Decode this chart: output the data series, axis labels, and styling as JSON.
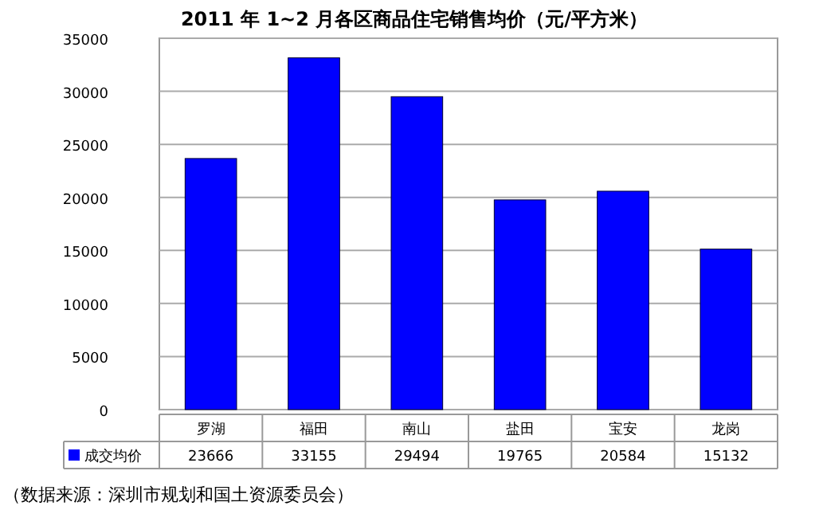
{
  "chart_data": {
    "type": "bar",
    "title": "2011 年 1~2 月各区商品住宅销售均价（元/平方米）",
    "categories": [
      "罗湖",
      "福田",
      "南山",
      "盐田",
      "宝安",
      "龙岗"
    ],
    "series": [
      {
        "name": "成交均价",
        "color": "#0000ff",
        "values": [
          23666,
          33155,
          29494,
          19765,
          20584,
          15132
        ]
      }
    ],
    "ylim": [
      0,
      35000
    ],
    "yticks": [
      0,
      5000,
      10000,
      15000,
      20000,
      25000,
      30000,
      35000
    ],
    "grid": "y",
    "legend": "bottom",
    "data_labels": true,
    "annotations": [
      "（数据来源：深圳市规划和国土资源委员会）"
    ]
  }
}
